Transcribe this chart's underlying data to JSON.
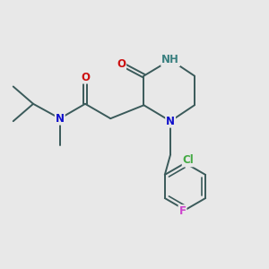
{
  "bg": "#e8e8e8",
  "bond_color": "#3a5a5a",
  "bond_width": 1.4,
  "colors": {
    "N": "#1010cc",
    "NH": "#3a8080",
    "O": "#cc1010",
    "Cl": "#44aa44",
    "F": "#cc44cc"
  },
  "fs": 8.5,
  "xlim": [
    0,
    10
  ],
  "ylim": [
    0,
    10
  ]
}
